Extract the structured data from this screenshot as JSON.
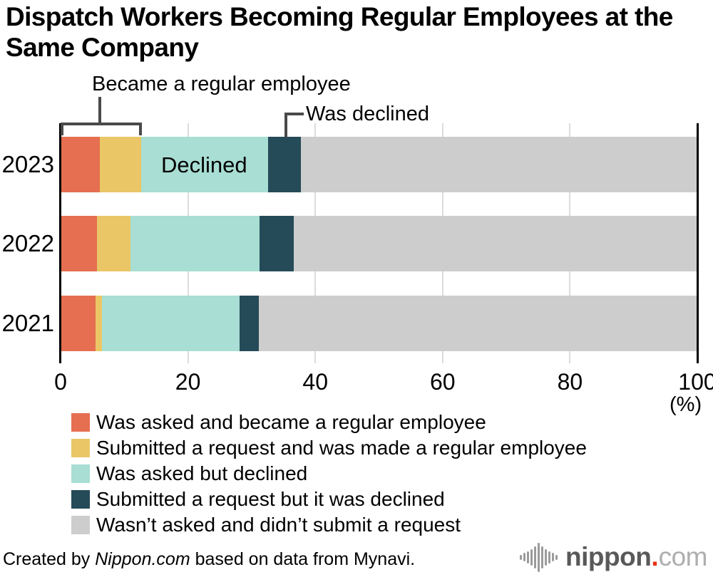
{
  "title": "Dispatch Workers Becoming Regular Employees at the Same Company",
  "annotations": {
    "bracket_label": "Became a regular employee",
    "callout_label": "Was declined",
    "inline_label": "Declined"
  },
  "axis": {
    "unit": "(%)"
  },
  "chart_data": {
    "type": "bar",
    "orientation": "horizontal-stacked",
    "title": "Dispatch Workers Becoming Regular Employees at the Same Company",
    "categories": [
      "2023",
      "2022",
      "2021"
    ],
    "series": [
      {
        "name": "Was asked and became a regular employee",
        "color": "#E56F50",
        "values": [
          6.2,
          5.7,
          5.5
        ]
      },
      {
        "name": "Submitted a request and was made a regular employee",
        "color": "#EAC666",
        "values": [
          6.4,
          5.3,
          1.0
        ]
      },
      {
        "name": "Was asked but declined",
        "color": "#A8DED3",
        "values": [
          20.0,
          20.3,
          21.6
        ]
      },
      {
        "name": "Submitted a request but it was declined",
        "color": "#254A58",
        "values": [
          5.1,
          5.3,
          3.0
        ]
      },
      {
        "name": "Wasn’t asked and didn’t submit a request",
        "color": "#CDCDCD",
        "values": [
          62.3,
          63.4,
          68.9
        ]
      }
    ],
    "xlim": [
      0,
      100
    ],
    "xticks": [
      0,
      20,
      40,
      60,
      80,
      100
    ],
    "xlabel": "(%)",
    "grid": true,
    "legend_position": "bottom",
    "annotation_color": "#4a4a4a",
    "grid_color": "#dcdcdc"
  },
  "footer": {
    "prefix": "Created by ",
    "source": "Nippon.com",
    "suffix": " based on data from Mynavi."
  },
  "logo": {
    "name": "nippon",
    "dot": ".",
    "tld": "com"
  }
}
